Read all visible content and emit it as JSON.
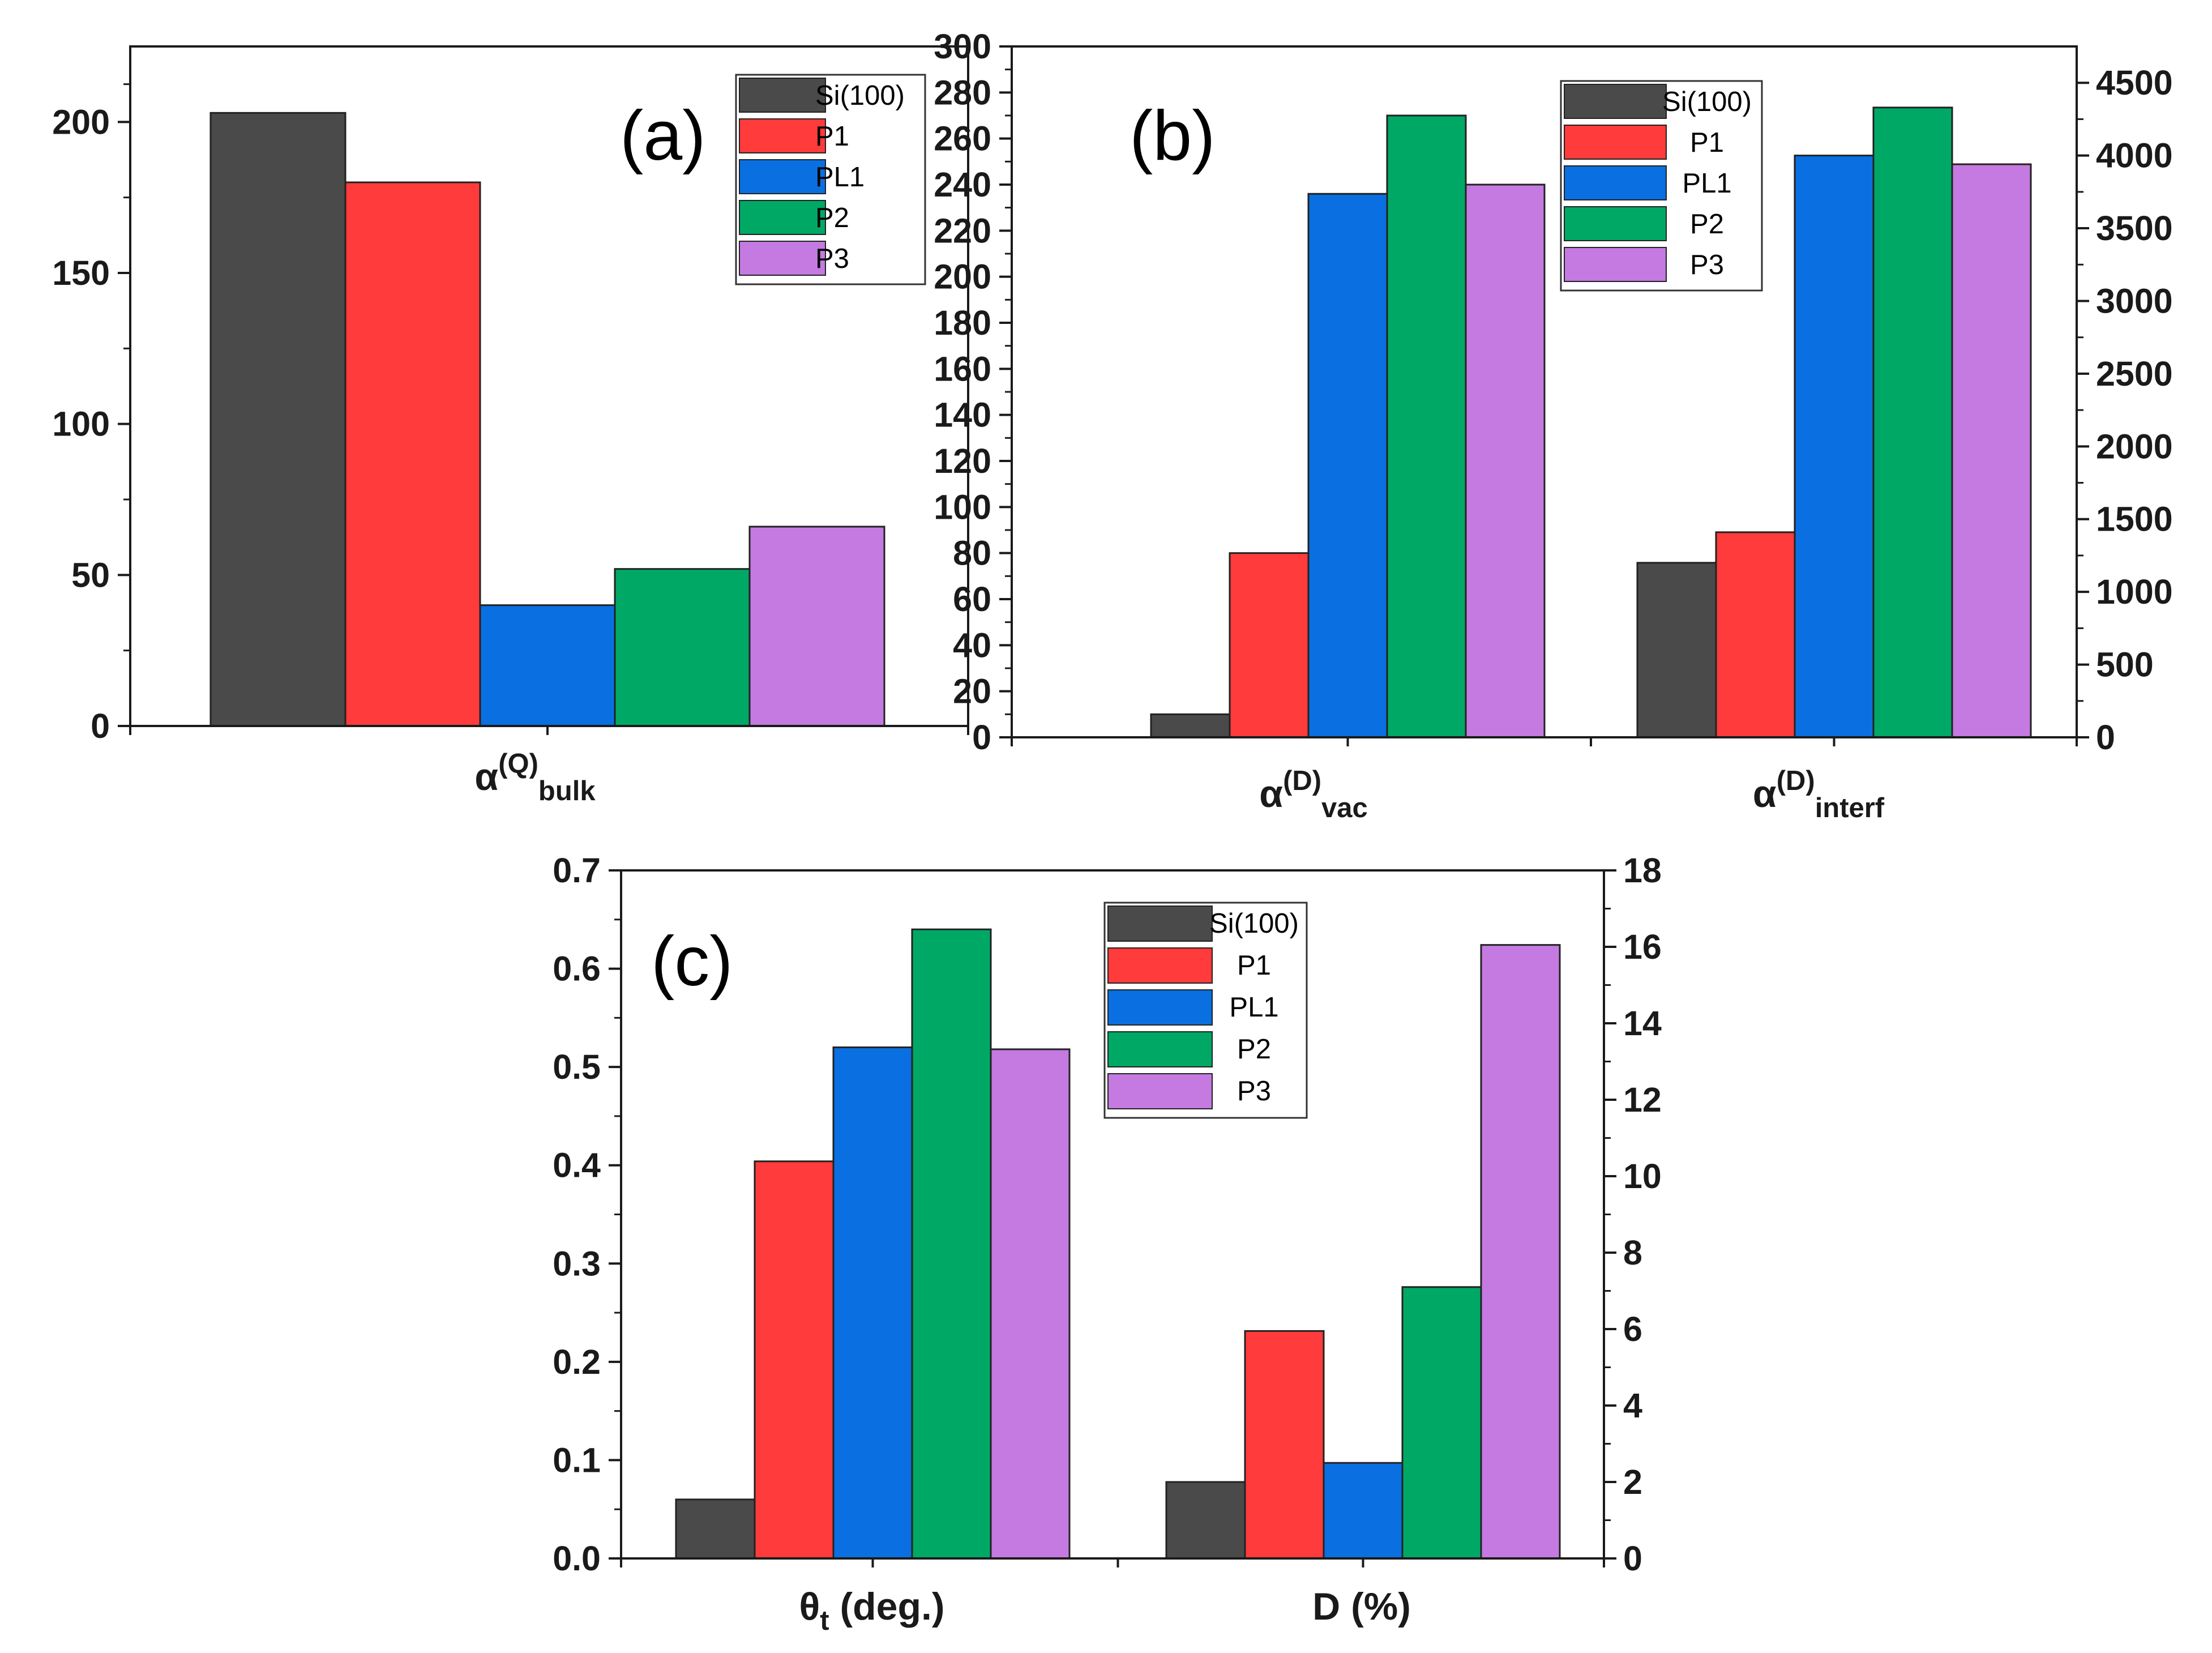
{
  "series_names": [
    "Si(100)",
    "P1",
    "PL1",
    "P2",
    "P3"
  ],
  "series_colors": [
    "#4a4a4a",
    "#ff3b3b",
    "#0a6fe0",
    "#00a866",
    "#c47ae0"
  ],
  "chart_data": [
    {
      "type": "bar",
      "panel_label": "(a)",
      "categories": [
        {
          "symbol": "α",
          "sup": "(Q)",
          "sub": "bulk"
        }
      ],
      "y_left": {
        "lim": [
          0,
          225
        ],
        "ticks": [
          "0",
          "50",
          "100",
          "150",
          "200"
        ],
        "tick_values": [
          0,
          50,
          100,
          150,
          200
        ]
      },
      "series": [
        {
          "name": "Si(100)",
          "values": [
            203
          ]
        },
        {
          "name": "P1",
          "values": [
            180
          ]
        },
        {
          "name": "PL1",
          "values": [
            40
          ]
        },
        {
          "name": "P2",
          "values": [
            52
          ]
        },
        {
          "name": "P3",
          "values": [
            66
          ]
        }
      ],
      "legend": "top-right"
    },
    {
      "type": "bar",
      "panel_label": "(b)",
      "categories": [
        {
          "symbol": "α",
          "sup": "(D)",
          "sub": "vac",
          "axis": "left"
        },
        {
          "symbol": "α",
          "sup": "(D)",
          "sub": "interf",
          "axis": "right"
        }
      ],
      "y_left": {
        "lim": [
          0,
          300
        ],
        "ticks": [
          "0",
          "20",
          "40",
          "60",
          "80",
          "100",
          "120",
          "140",
          "160",
          "180",
          "200",
          "220",
          "240",
          "260",
          "280",
          "300"
        ],
        "tick_values": [
          0,
          20,
          40,
          60,
          80,
          100,
          120,
          140,
          160,
          180,
          200,
          220,
          240,
          260,
          280,
          300
        ]
      },
      "y_right": {
        "lim": [
          0,
          4750
        ],
        "ticks": [
          "0",
          "500",
          "1000",
          "1500",
          "2000",
          "2500",
          "3000",
          "3500",
          "4000",
          "4500"
        ],
        "tick_values": [
          0,
          500,
          1000,
          1500,
          2000,
          2500,
          3000,
          3500,
          4000,
          4500
        ]
      },
      "series": [
        {
          "name": "Si(100)",
          "values": [
            10,
            1200
          ]
        },
        {
          "name": "P1",
          "values": [
            80,
            1410
          ]
        },
        {
          "name": "PL1",
          "values": [
            236,
            4000
          ]
        },
        {
          "name": "P2",
          "values": [
            270,
            4330
          ]
        },
        {
          "name": "P3",
          "values": [
            240,
            3940
          ]
        }
      ],
      "legend": "top-center"
    },
    {
      "type": "bar",
      "panel_label": "(c)",
      "categories": [
        {
          "symbol": "θ",
          "sub": "t",
          "tail": " (deg.)",
          "axis": "left"
        },
        {
          "symbol": "D (%)",
          "axis": "right"
        }
      ],
      "y_left": {
        "lim": [
          0,
          0.7
        ],
        "ticks": [
          "0.0",
          "0.1",
          "0.2",
          "0.3",
          "0.4",
          "0.5",
          "0.6",
          "0.7"
        ],
        "tick_values": [
          0,
          0.1,
          0.2,
          0.3,
          0.4,
          0.5,
          0.6,
          0.7
        ]
      },
      "y_right": {
        "lim": [
          0,
          18
        ],
        "ticks": [
          "0",
          "2",
          "4",
          "6",
          "8",
          "10",
          "12",
          "14",
          "16",
          "18"
        ],
        "tick_values": [
          0,
          2,
          4,
          6,
          8,
          10,
          12,
          14,
          16,
          18
        ]
      },
      "series": [
        {
          "name": "Si(100)",
          "values": [
            0.06,
            2.0
          ]
        },
        {
          "name": "P1",
          "values": [
            0.404,
            5.95
          ]
        },
        {
          "name": "PL1",
          "values": [
            0.52,
            2.5
          ]
        },
        {
          "name": "P2",
          "values": [
            0.64,
            7.1
          ]
        },
        {
          "name": "P3",
          "values": [
            0.518,
            16.05
          ]
        }
      ],
      "legend": "top-center"
    }
  ]
}
